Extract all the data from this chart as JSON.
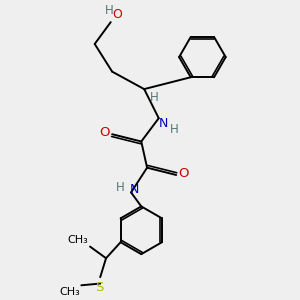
{
  "bg_color": "#efefef",
  "atom_color_N": "#0000bb",
  "atom_color_O": "#cc0000",
  "atom_color_S": "#bbbb00",
  "atom_color_H": "#557777",
  "bond_color": "#000000",
  "bond_width": 1.4,
  "font_size": 8.5,
  "xlim": [
    0,
    10
  ],
  "ylim": [
    0,
    10
  ]
}
